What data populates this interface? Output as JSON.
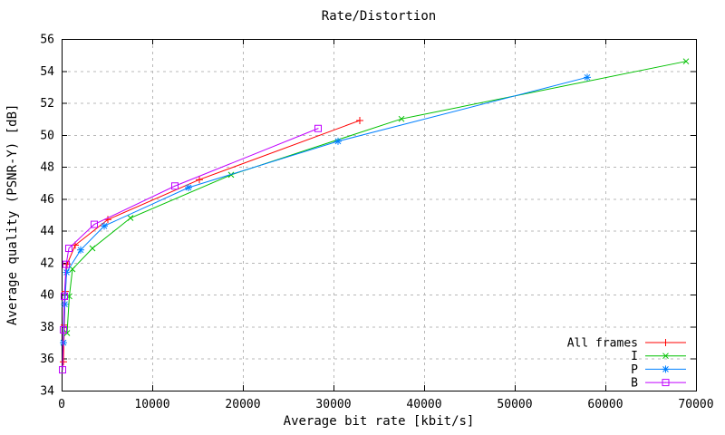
{
  "window": {
    "background": "#ffffff"
  },
  "chart_data": {
    "type": "line",
    "title": "Rate/Distortion",
    "xlabel": "Average bit rate [kbit/s]",
    "ylabel": "Average quality (PSNR-Y) [dB]",
    "xlim": [
      0,
      70000
    ],
    "ylim": [
      34,
      56
    ],
    "xticks": [
      0,
      10000,
      20000,
      30000,
      40000,
      50000,
      60000,
      70000
    ],
    "yticks": [
      34,
      36,
      38,
      40,
      42,
      44,
      46,
      48,
      50,
      52,
      54,
      56
    ],
    "grid": "dashed",
    "grid_color": "#b8b8b8",
    "axis_color": "#000000",
    "legend_position": "bottom-right-inside",
    "legend_entries": [
      "All frames",
      "I",
      "P",
      "B"
    ],
    "series": [
      {
        "name": "All frames",
        "color": "#ff0000",
        "marker": "plus",
        "points": [
          [
            200,
            35.8
          ],
          [
            300,
            38.1
          ],
          [
            400,
            40.2
          ],
          [
            600,
            41.9
          ],
          [
            1500,
            43.1
          ],
          [
            5100,
            44.7
          ],
          [
            15200,
            47.2
          ],
          [
            32900,
            50.9
          ]
        ]
      },
      {
        "name": "I",
        "color": "#00c000",
        "marker": "x",
        "points": [
          [
            600,
            37.6
          ],
          [
            850,
            39.9
          ],
          [
            1200,
            41.6
          ],
          [
            3400,
            42.9
          ],
          [
            7600,
            44.8
          ],
          [
            18700,
            47.5
          ],
          [
            37500,
            51.0
          ],
          [
            68900,
            54.6
          ]
        ]
      },
      {
        "name": "P",
        "color": "#0080ff",
        "marker": "asterisk",
        "points": [
          [
            200,
            37.0
          ],
          [
            350,
            39.4
          ],
          [
            550,
            41.4
          ],
          [
            2100,
            42.8
          ],
          [
            4700,
            44.3
          ],
          [
            14000,
            46.7
          ],
          [
            30500,
            49.6
          ],
          [
            58000,
            53.6
          ]
        ]
      },
      {
        "name": "B",
        "color": "#c000ff",
        "marker": "open-square",
        "points": [
          [
            100,
            35.3
          ],
          [
            200,
            37.8
          ],
          [
            300,
            39.9
          ],
          [
            500,
            41.9
          ],
          [
            800,
            42.9
          ],
          [
            3600,
            44.4
          ],
          [
            12500,
            46.8
          ],
          [
            28300,
            50.4
          ]
        ]
      }
    ]
  }
}
